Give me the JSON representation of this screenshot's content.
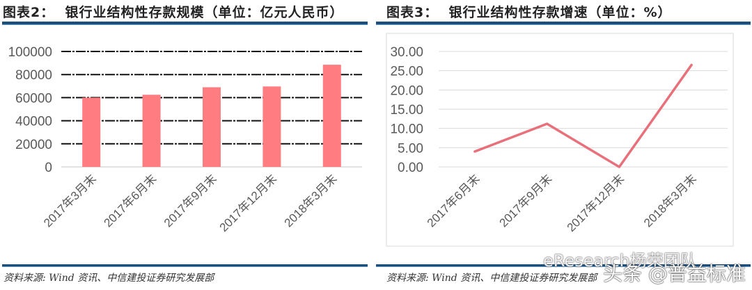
{
  "left_panel": {
    "title": "图表2：  银行业结构性存款规模（单位：亿元人民币）",
    "source": "资料来源: Wind 资讯、中信建投证券研究发展部"
  },
  "right_panel": {
    "title": "图表3：  银行业结构性存款增速（单位：%）",
    "source": "资料来源: Wind 资讯、中信建投证券研究发展部"
  },
  "watermark": {
    "line1": "eResearch杨荣团队",
    "line2": "头条 @普益标准"
  },
  "colors": {
    "bar": "#ff7c80",
    "line": "#e8707a",
    "rule": "#1f4e79",
    "axis_text": "#595959"
  },
  "chart_data": [
    {
      "type": "bar",
      "title": "银行业结构性存款规模（单位：亿元人民币）",
      "xlabel": "",
      "ylabel": "亿元人民币",
      "categories": [
        "2017年3月末",
        "2017年6月末",
        "2017年9月末",
        "2017年12月末",
        "2018年3月末"
      ],
      "values": [
        60000,
        62500,
        69000,
        69700,
        88500
      ],
      "ylim": [
        0,
        100000
      ],
      "yticks": [
        "0",
        "20000",
        "40000",
        "60000",
        "80000",
        "100000"
      ],
      "grid": true,
      "legend": null
    },
    {
      "type": "line",
      "title": "银行业结构性存款增速（单位：%）",
      "xlabel": "",
      "ylabel": "%",
      "categories": [
        "2017年6月末",
        "2017年9月末",
        "2017年12月末",
        "2018年3月末"
      ],
      "values": [
        4.0,
        11.2,
        0.0,
        26.5
      ],
      "ylim": [
        0,
        30
      ],
      "yticks": [
        "0.00",
        "5.00",
        "10.00",
        "15.00",
        "20.00",
        "25.00",
        "30.00"
      ],
      "grid": true,
      "legend": null
    }
  ]
}
